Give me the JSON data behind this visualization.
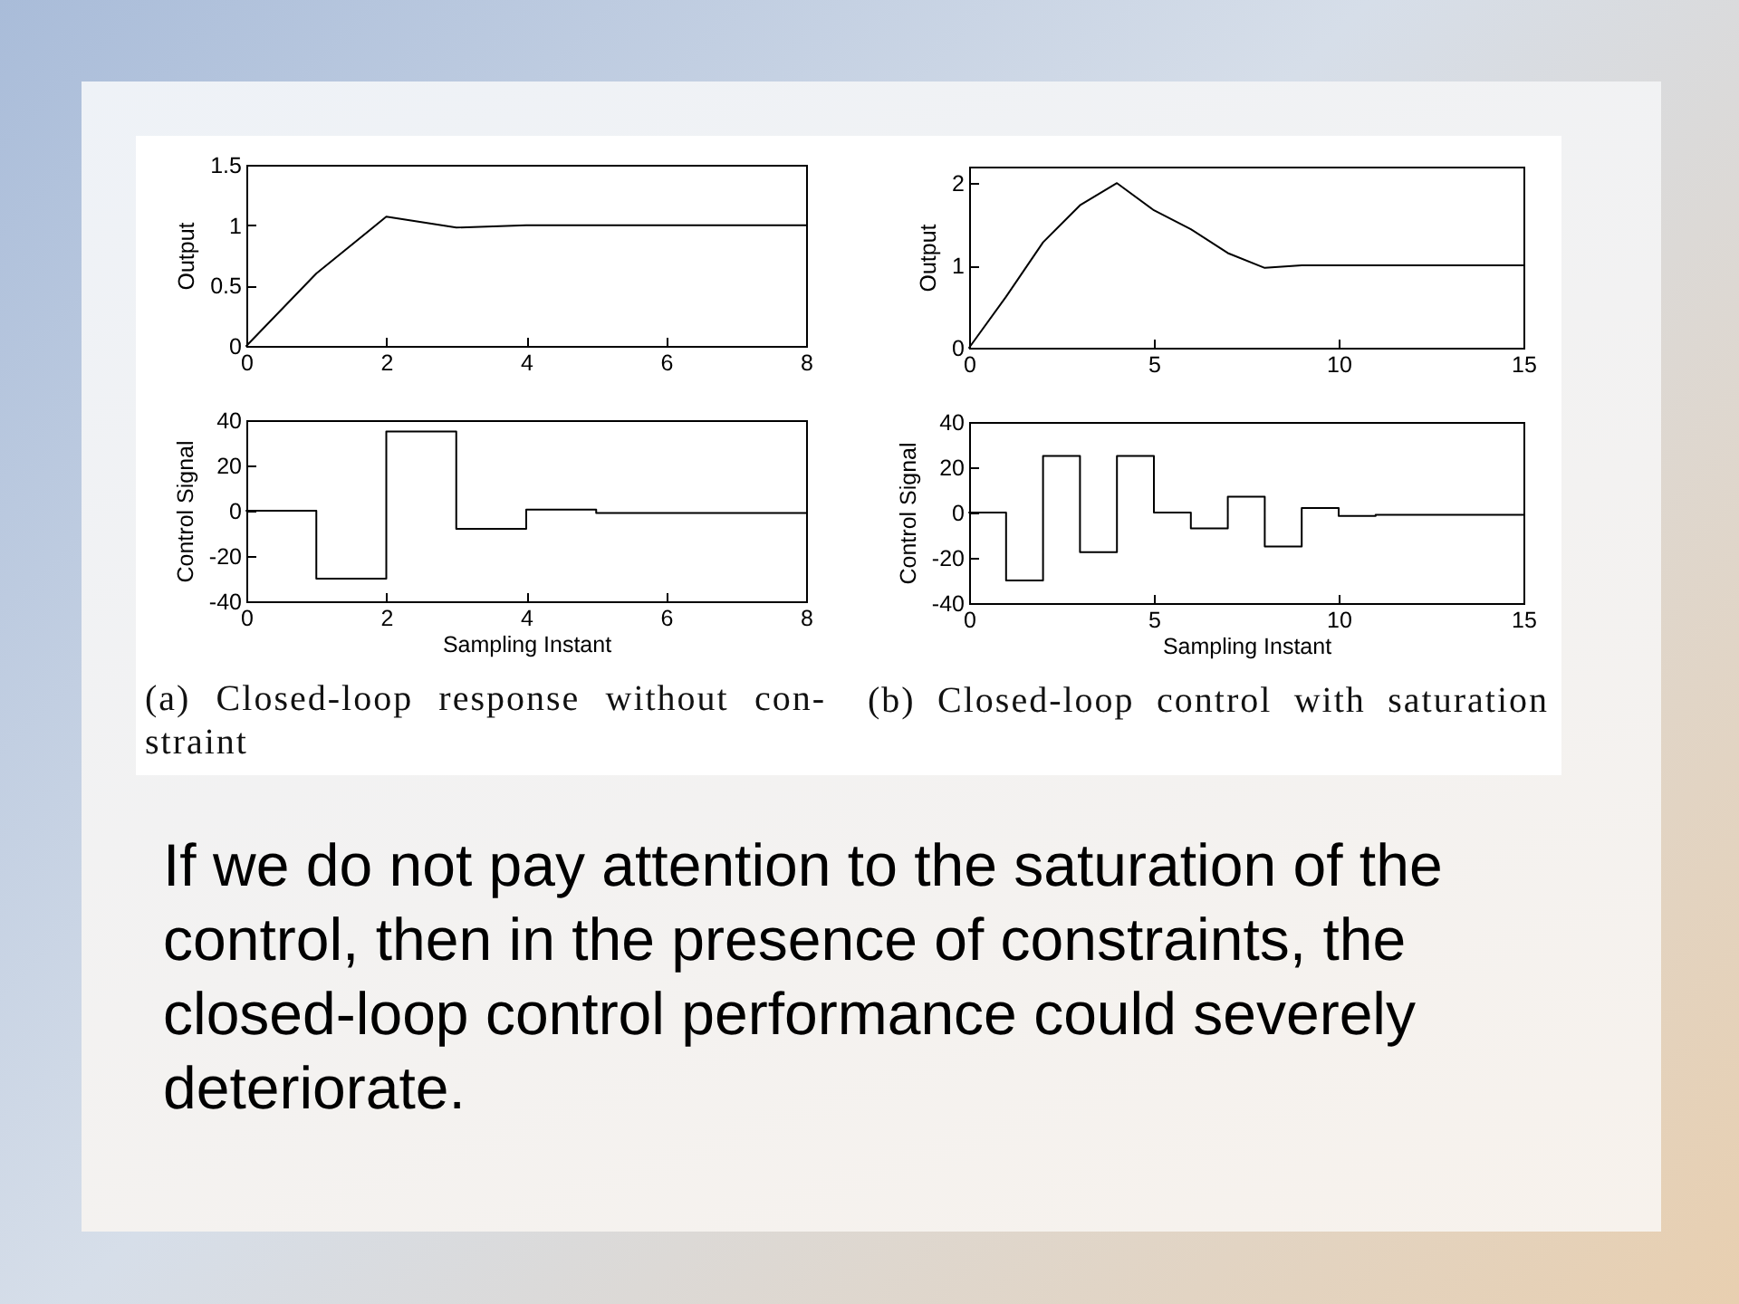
{
  "chart_data": [
    {
      "type": "line",
      "x": [
        0,
        1,
        2,
        3,
        4,
        5,
        6,
        7,
        8
      ],
      "values": [
        0,
        0.6,
        1.07,
        0.98,
        1,
        1,
        1,
        1,
        1
      ],
      "color": "#000000",
      "ylabel": "Output",
      "xlim": [
        0,
        8
      ],
      "xticks": [
        0,
        2,
        4,
        6,
        8
      ],
      "ylim": [
        0,
        1.5
      ],
      "yticks": [
        0,
        0.5,
        1,
        1.5
      ]
    },
    {
      "type": "line",
      "x": [
        0,
        1,
        2,
        3,
        4,
        5,
        6,
        7,
        8,
        9,
        10,
        11,
        12,
        13,
        14,
        15
      ],
      "values": [
        0,
        0.62,
        1.28,
        1.73,
        2,
        1.67,
        1.44,
        1.15,
        0.97,
        1,
        1,
        1,
        1,
        1,
        1,
        1
      ],
      "color": "#000000",
      "ylabel": "Output",
      "xlim": [
        0,
        15
      ],
      "xticks": [
        0,
        5,
        10,
        15
      ],
      "ylim": [
        0,
        2.2
      ],
      "yticks": [
        0,
        1,
        2
      ]
    },
    {
      "type": "step",
      "x": [
        0,
        1,
        2,
        3,
        4,
        5,
        6,
        7,
        8
      ],
      "values": [
        0,
        -30,
        35,
        -8,
        0.5,
        -1,
        -1,
        -1,
        -1
      ],
      "color": "#000000",
      "xlabel": "Sampling Instant",
      "ylabel": "Control Signal",
      "xlim": [
        0,
        8
      ],
      "xticks": [
        0,
        2,
        4,
        6,
        8
      ],
      "ylim": [
        -40,
        40
      ],
      "yticks": [
        -40,
        -20,
        0,
        20,
        40
      ],
      "annotations": [
        "(a) Closed-loop response without con-\nstraint"
      ]
    },
    {
      "type": "step",
      "x": [
        0,
        1,
        2,
        3,
        4,
        5,
        6,
        7,
        8,
        9,
        10,
        11,
        12,
        13,
        14,
        15
      ],
      "values": [
        0,
        -30,
        25,
        -17.5,
        25,
        0,
        -7,
        7,
        -15,
        2,
        -1.5,
        -1,
        -1,
        -1,
        -1,
        -1
      ],
      "color": "#000000",
      "xlabel": "Sampling Instant",
      "ylabel": "Control Signal",
      "xlim": [
        0,
        15
      ],
      "xticks": [
        0,
        5,
        10,
        15
      ],
      "ylim": [
        -40,
        40
      ],
      "yticks": [
        -40,
        -20,
        0,
        20,
        40
      ],
      "annotations": [
        "(b) Closed-loop control with saturation"
      ]
    },
    {
      "type": "other",
      "annotations": [
        "If we do not pay attention to the saturation of the control, then in the presence of constraints, the closed-loop control performance could severely deteriorate."
      ]
    }
  ]
}
